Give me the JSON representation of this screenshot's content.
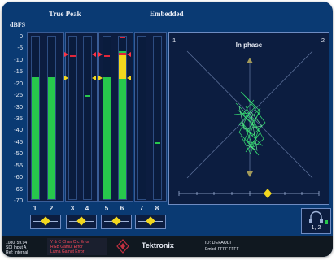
{
  "header": {
    "left_title": "True Peak",
    "right_title": "Embedded"
  },
  "meters": {
    "unit_label": "dBFS",
    "scale_labels": [
      "0",
      "-5",
      "-10",
      "-15",
      "-20",
      "-25",
      "-30",
      "-35",
      "-40",
      "-45",
      "-50",
      "-55",
      "-60",
      "-65",
      "-70"
    ],
    "range_db": [
      -70,
      0
    ],
    "channels": [
      {
        "label": "1",
        "level_db": -23,
        "peak_db": null
      },
      {
        "label": "2",
        "level_db": -23,
        "peak_db": null
      },
      {
        "label": "3",
        "level_db": null,
        "peak_db": -8
      },
      {
        "label": "4",
        "level_db": null,
        "peak_db": -25
      },
      {
        "label": "5",
        "level_db": -20,
        "peak_db": -8
      },
      {
        "label": "6",
        "level_db": -7,
        "peak_db": 0
      },
      {
        "label": "7",
        "level_db": null,
        "peak_db": null
      },
      {
        "label": "8",
        "level_db": null,
        "peak_db": -45
      }
    ],
    "marker_db": [
      -8,
      -18
    ]
  },
  "phase_display": {
    "title": "In phase",
    "left_channel_label": "1",
    "right_channel_label": "2",
    "pair_label": "1, 2"
  },
  "status_bar": {
    "format_line": "1080i 59.94",
    "input_line": "SDI Input A",
    "ref_line": "Ref: Internal",
    "errors": [
      "Y & C Chan Crc Error",
      "RGB Gamut Error",
      "Luma Gamut Error"
    ],
    "brand": "Tektronix",
    "id_line": "ID: DEFAULT",
    "embed_line": "Embd: FFFF FFFF"
  },
  "colors": {
    "background": "#0a3a73",
    "meter_green": "#27c84c",
    "meter_yellow": "#f2d71e",
    "meter_red": "#e0263a",
    "phase_trace": "#3cff7a",
    "marker_arrow": "#ff3344",
    "marker_yellow": "#f2d71e"
  }
}
